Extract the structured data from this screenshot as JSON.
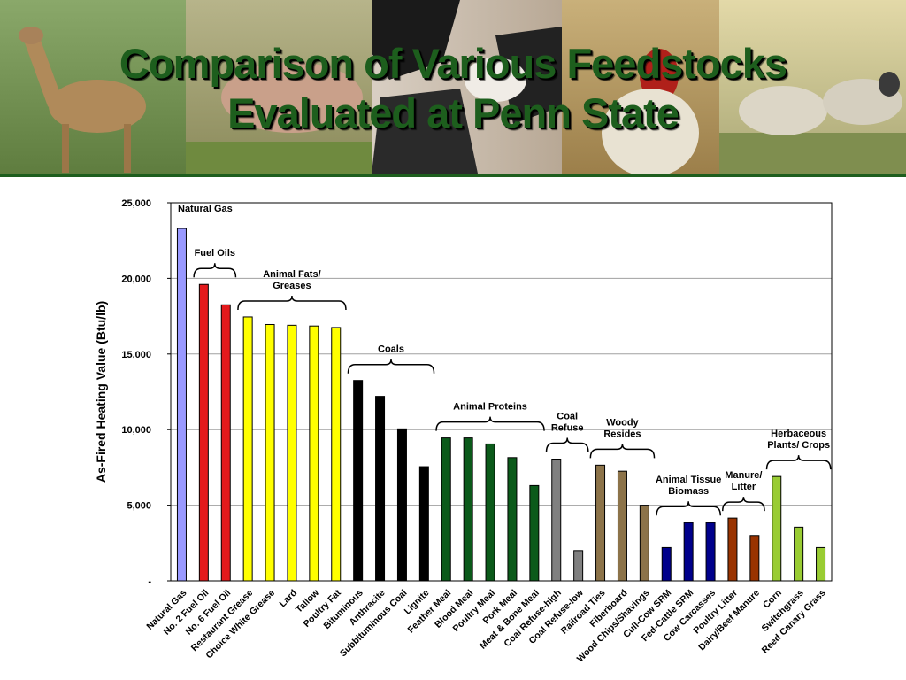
{
  "slide": {
    "title_line1": "Comparison of Various Feedstocks",
    "title_line2": "Evaluated at Penn State"
  },
  "banner_photos": [
    "deer-photo",
    "pig-photo",
    "cows-photo",
    "rooster-photo",
    "sheep-photo"
  ],
  "chart_data": {
    "type": "bar",
    "title": "",
    "xlabel": "",
    "ylabel": "As-Fired Heating Value (Btu/lb)",
    "ylim": [
      0,
      25000
    ],
    "yticks": [
      0,
      5000,
      10000,
      15000,
      20000,
      25000
    ],
    "ytick_labels": [
      "-",
      "5,000",
      "10,000",
      "15,000",
      "20,000",
      "25,000"
    ],
    "grid": true,
    "categories": [
      "Natural Gas",
      "No. 2 Fuel Oil",
      "No. 6 Fuel Oil",
      "Restaurant Grease",
      "Choice White Grease",
      "Lard",
      "Tallow",
      "Poultry Fat",
      "Bituminous",
      "Anthracite",
      "Subbituminous Coal",
      "Lignite",
      "Feather Meal",
      "Blood Meal",
      "Poultry Meal",
      "Pork Meal",
      "Meat & Bone Meal",
      "Coal Refuse-high",
      "Coal Refuse-low",
      "Railroad Ties",
      "Fiberboard",
      "Wood Chips/Shavings",
      "Cull-Cow SRM",
      "Fed-Cattle SRM",
      "Cow Carcasses",
      "Poultry Litter",
      "Dairy/Beef Manure",
      "Corn",
      "Switchgrass",
      "Reed Canary Grass"
    ],
    "values": [
      23300,
      19600,
      18250,
      17450,
      16950,
      16900,
      16850,
      16750,
      13250,
      12200,
      10050,
      7550,
      9450,
      9450,
      9050,
      8150,
      6300,
      8050,
      2000,
      7650,
      7250,
      5000,
      2200,
      3850,
      3850,
      4150,
      3000,
      6900,
      3550,
      2200
    ],
    "bar_colors": [
      "#9999ff",
      "#e31a1c",
      "#e31a1c",
      "#ffff00",
      "#ffff00",
      "#ffff00",
      "#ffff00",
      "#ffff00",
      "#000000",
      "#000000",
      "#000000",
      "#000000",
      "#0b5a1a",
      "#0b5a1a",
      "#0b5a1a",
      "#0b5a1a",
      "#0b5a1a",
      "#808080",
      "#808080",
      "#8c7349",
      "#8c7349",
      "#8c7349",
      "#00008b",
      "#00008b",
      "#00008b",
      "#993300",
      "#993300",
      "#99cc33",
      "#99cc33",
      "#99cc33"
    ],
    "groups": [
      {
        "label": "Natural Gas",
        "start": 0,
        "end": 0,
        "brace": false
      },
      {
        "label": "Fuel Oils",
        "start": 1,
        "end": 2,
        "brace": true
      },
      {
        "label": "Animal Fats/\nGreases",
        "start": 3,
        "end": 7,
        "brace": true
      },
      {
        "label": "Coals",
        "start": 8,
        "end": 11,
        "brace": true
      },
      {
        "label": "Animal Proteins",
        "start": 12,
        "end": 16,
        "brace": true
      },
      {
        "label": "Coal\nRefuse",
        "start": 17,
        "end": 18,
        "brace": true
      },
      {
        "label": "Woody\nResides",
        "start": 19,
        "end": 21,
        "brace": true
      },
      {
        "label": "Animal Tissue\nBiomass",
        "start": 22,
        "end": 24,
        "brace": true
      },
      {
        "label": "Manure/\nLitter",
        "start": 25,
        "end": 26,
        "brace": true
      },
      {
        "label": "Herbaceous\nPlants/ Crops",
        "start": 27,
        "end": 29,
        "brace": true
      }
    ]
  }
}
